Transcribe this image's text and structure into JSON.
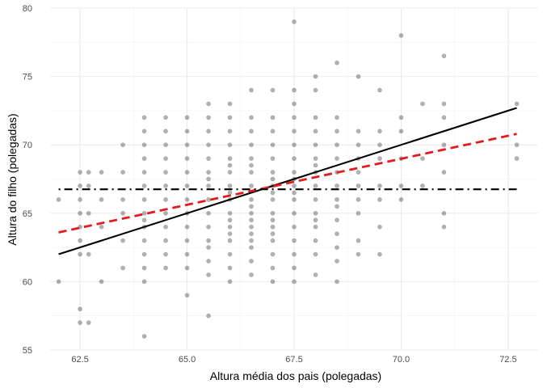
{
  "chart_data": {
    "type": "scatter",
    "title": "",
    "xlabel": "Altura média dos pais (polegadas)",
    "ylabel": "Altura do filho (polegadas)",
    "xlim": [
      61.8,
      73.2
    ],
    "ylim": [
      55,
      80
    ],
    "x_ticks": [
      62.5,
      65.0,
      67.5,
      70.0,
      72.5
    ],
    "x_tick_labels": [
      "62.5",
      "65.0",
      "67.5",
      "70.0",
      "72.5"
    ],
    "y_ticks": [
      55,
      60,
      65,
      70,
      75,
      80
    ],
    "y_tick_labels": [
      "55",
      "60",
      "65",
      "70",
      "75",
      "80"
    ],
    "grid": true,
    "theme": "minimal",
    "point_color": "#000000",
    "point_alpha": 0.3,
    "series": [
      {
        "kind": "points",
        "x": [
          62.0,
          62.0,
          62.5,
          62.5,
          62.5,
          62.5,
          62.5,
          62.5,
          62.5,
          62.5,
          62.5,
          62.7,
          62.7,
          62.7,
          62.7,
          62.7,
          63.0,
          63.0,
          63.0,
          63.0,
          63.5,
          63.5,
          63.5,
          63.5,
          63.5,
          63.5,
          64.0,
          64.0,
          64.0,
          64.0,
          64.0,
          64.0,
          64.0,
          64.0,
          64.0,
          64.0,
          64.0,
          64.0,
          64.0,
          64.0,
          64.0,
          64.5,
          64.5,
          64.5,
          64.5,
          64.5,
          64.5,
          64.5,
          64.5,
          64.5,
          64.5,
          64.5,
          64.5,
          65.0,
          65.0,
          65.0,
          65.0,
          65.0,
          65.0,
          65.0,
          65.0,
          65.0,
          65.0,
          65.0,
          65.0,
          65.0,
          65.5,
          65.5,
          65.5,
          65.5,
          65.5,
          65.5,
          65.5,
          65.5,
          65.5,
          65.5,
          65.5,
          65.5,
          65.5,
          65.5,
          65.5,
          65.5,
          66.0,
          66.0,
          66.0,
          66.0,
          66.0,
          66.0,
          66.0,
          66.0,
          66.0,
          66.0,
          66.0,
          66.0,
          66.0,
          66.0,
          66.0,
          66.0,
          66.0,
          66.0,
          66.5,
          66.5,
          66.5,
          66.5,
          66.5,
          66.5,
          66.5,
          66.5,
          66.5,
          66.5,
          66.5,
          66.5,
          66.5,
          66.5,
          66.5,
          66.5,
          66.5,
          66.5,
          67.0,
          67.0,
          67.0,
          67.0,
          67.0,
          67.0,
          67.0,
          67.0,
          67.0,
          67.0,
          67.0,
          67.0,
          67.0,
          67.0,
          67.0,
          67.0,
          67.0,
          67.0,
          67.5,
          67.5,
          67.5,
          67.5,
          67.5,
          67.5,
          67.5,
          67.5,
          67.5,
          67.5,
          67.5,
          67.5,
          67.5,
          67.5,
          67.5,
          67.5,
          67.5,
          67.5,
          68.0,
          68.0,
          68.0,
          68.0,
          68.0,
          68.0,
          68.0,
          68.0,
          68.0,
          68.0,
          68.0,
          68.0,
          68.0,
          68.0,
          68.0,
          68.0,
          68.5,
          68.5,
          68.5,
          68.5,
          68.5,
          68.5,
          68.5,
          68.5,
          68.5,
          68.5,
          68.5,
          68.5,
          68.5,
          68.5,
          69.0,
          69.0,
          69.0,
          69.0,
          69.0,
          69.0,
          69.0,
          69.0,
          69.0,
          69.0,
          69.5,
          69.5,
          69.5,
          69.5,
          69.5,
          69.5,
          69.5,
          69.5,
          70.0,
          70.0,
          70.0,
          70.0,
          70.0,
          70.0,
          70.5,
          70.5,
          70.5,
          71.0,
          71.0,
          71.0,
          71.0,
          71.0,
          71.0,
          71.0,
          72.7,
          72.7,
          72.7
        ],
        "y": [
          60.0,
          66.0,
          57.0,
          58.0,
          62.0,
          63.0,
          64.0,
          65.0,
          66.0,
          67.0,
          68.0,
          57.0,
          62.0,
          65.0,
          67.0,
          68.0,
          60.0,
          64.0,
          66.0,
          68.0,
          61.0,
          63.0,
          65.0,
          66.0,
          68.0,
          70.0,
          56.0,
          60.0,
          61.0,
          62.0,
          63.0,
          64.0,
          64.5,
          65.0,
          66.0,
          67.0,
          68.0,
          69.0,
          70.0,
          71.0,
          72.0,
          61.0,
          62.0,
          63.0,
          64.0,
          65.0,
          66.0,
          67.0,
          68.0,
          69.0,
          70.0,
          71.0,
          72.0,
          59.0,
          61.0,
          62.0,
          63.0,
          64.0,
          65.0,
          66.0,
          67.0,
          68.0,
          69.0,
          70.0,
          71.0,
          72.0,
          57.5,
          60.5,
          61.5,
          62.5,
          63.0,
          64.0,
          65.0,
          66.0,
          67.0,
          67.5,
          68.0,
          69.0,
          70.0,
          71.0,
          72.0,
          73.0,
          60.0,
          61.0,
          62.0,
          63.0,
          63.5,
          64.0,
          64.5,
          65.0,
          66.0,
          66.5,
          67.0,
          68.0,
          68.5,
          69.0,
          70.0,
          71.0,
          72.0,
          73.0,
          60.5,
          61.5,
          62.5,
          63.0,
          63.5,
          64.0,
          64.5,
          65.0,
          65.5,
          66.0,
          67.0,
          68.0,
          68.5,
          69.0,
          70.0,
          71.0,
          72.0,
          74.0,
          60.0,
          61.0,
          62.0,
          63.0,
          63.5,
          64.0,
          64.5,
          65.0,
          66.0,
          66.5,
          67.0,
          67.5,
          68.0,
          69.0,
          70.0,
          71.0,
          72.0,
          74.0,
          60.0,
          61.0,
          62.0,
          63.0,
          64.0,
          65.0,
          66.0,
          66.5,
          67.0,
          67.5,
          68.0,
          69.0,
          70.0,
          71.0,
          72.0,
          73.0,
          74.0,
          79.0,
          60.5,
          62.0,
          63.0,
          64.0,
          64.5,
          65.0,
          66.0,
          67.0,
          68.0,
          68.5,
          69.0,
          70.0,
          71.0,
          72.0,
          74.0,
          75.0,
          60.0,
          61.5,
          62.5,
          63.5,
          64.5,
          65.5,
          66.0,
          67.0,
          68.0,
          69.0,
          70.0,
          71.0,
          72.0,
          76.0,
          62.0,
          63.0,
          65.0,
          66.0,
          67.0,
          68.0,
          69.0,
          70.0,
          71.0,
          75.0,
          62.0,
          64.0,
          66.0,
          67.0,
          69.0,
          70.0,
          71.0,
          74.0,
          66.0,
          67.0,
          69.0,
          71.0,
          72.0,
          78.0,
          67.0,
          69.0,
          73.0,
          64.0,
          65.0,
          68.0,
          70.0,
          72.0,
          73.0,
          76.5,
          69.0,
          70.0,
          73.0
        ]
      },
      {
        "kind": "line",
        "style": "solid",
        "color": "#000000",
        "x": [
          62.0,
          72.7
        ],
        "y": [
          62.0,
          72.7
        ]
      },
      {
        "kind": "line",
        "style": "dashed",
        "color": "#e41a1c",
        "x": [
          62.0,
          72.7
        ],
        "y": [
          63.6,
          70.8
        ]
      },
      {
        "kind": "line",
        "style": "dotdash",
        "color": "#000000",
        "x": [
          62.0,
          72.7
        ],
        "y": [
          66.75,
          66.75
        ]
      }
    ]
  }
}
